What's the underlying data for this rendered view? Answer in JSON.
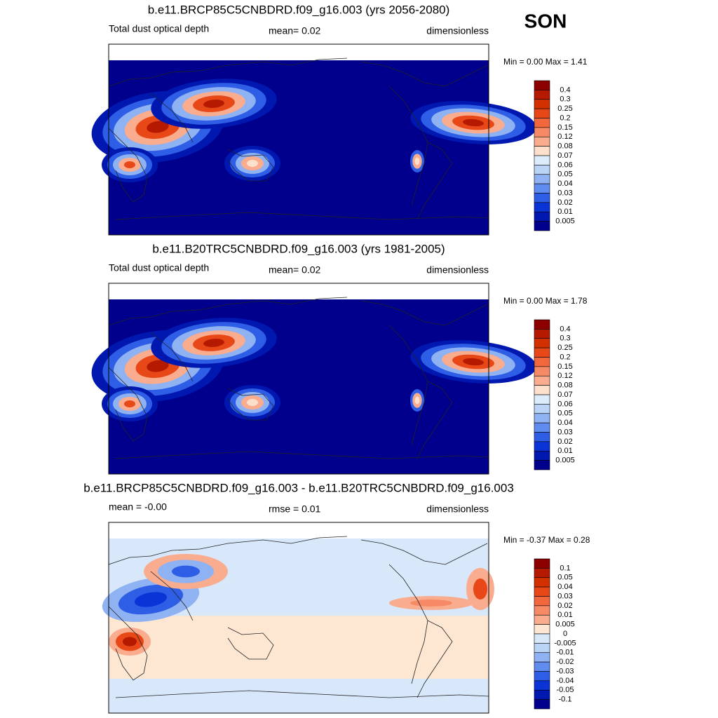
{
  "season": "SON",
  "panels": [
    {
      "title": "b.e11.BRCP85C5CNBDRD.f09_g16.003 (yrs 2056-2080)",
      "left": "Total dust optical depth",
      "center": "mean=   0.02",
      "right": "dimensionless",
      "minmax": "Min =   0.00 Max =   1.41",
      "colorbar": {
        "labels": [
          "0.4",
          "0.3",
          "0.25",
          "0.2",
          "0.15",
          "0.12",
          "0.08",
          "0.07",
          "0.06",
          "0.05",
          "0.04",
          "0.03",
          "0.02",
          "0.01",
          "0.005"
        ],
        "colors": [
          "#8c0000",
          "#b51a00",
          "#d33000",
          "#e84818",
          "#f2683c",
          "#f68a66",
          "#f9ac8e",
          "#fde0cc",
          "#dcecfa",
          "#b9d4f6",
          "#8fb2f2",
          "#5f8cee",
          "#2f5ee6",
          "#0a34d6",
          "#0018b0",
          "#00008c"
        ]
      }
    },
    {
      "title": "b.e11.B20TRC5CNBDRD.f09_g16.003 (yrs 1981-2005)",
      "left": "Total dust optical depth",
      "center": "mean=   0.02",
      "right": "dimensionless",
      "minmax": "Min =   0.00 Max =   1.78",
      "colorbar": {
        "labels": [
          "0.4",
          "0.3",
          "0.25",
          "0.2",
          "0.15",
          "0.12",
          "0.08",
          "0.07",
          "0.06",
          "0.05",
          "0.04",
          "0.03",
          "0.02",
          "0.01",
          "0.005"
        ],
        "colors": [
          "#8c0000",
          "#b51a00",
          "#d33000",
          "#e84818",
          "#f2683c",
          "#f68a66",
          "#f9ac8e",
          "#fde0cc",
          "#dcecfa",
          "#b9d4f6",
          "#8fb2f2",
          "#5f8cee",
          "#2f5ee6",
          "#0a34d6",
          "#0018b0",
          "#00008c"
        ]
      }
    },
    {
      "title": "b.e11.BRCP85C5CNBDRD.f09_g16.003 - b.e11.B20TRC5CNBDRD.f09_g16.003",
      "left": "mean =  -0.00",
      "center": "rmse =   0.01",
      "right": "dimensionless",
      "minmax": "Min =  -0.37 Max =   0.28",
      "colorbar": {
        "labels": [
          "0.1",
          "0.05",
          "0.04",
          "0.03",
          "0.02",
          "0.01",
          "0.005",
          "0",
          "-0.005",
          "-0.01",
          "-0.02",
          "-0.03",
          "-0.04",
          "-0.05",
          "-0.1"
        ],
        "colors": [
          "#8c0000",
          "#b51a00",
          "#d33000",
          "#e84818",
          "#f2683c",
          "#f68a66",
          "#f9ac8e",
          "#fde6d2",
          "#d8e8fa",
          "#b9d4f6",
          "#8fb2f2",
          "#5f8cee",
          "#2f5ee6",
          "#0a34d6",
          "#0018b0",
          "#00008c"
        ]
      }
    }
  ]
}
